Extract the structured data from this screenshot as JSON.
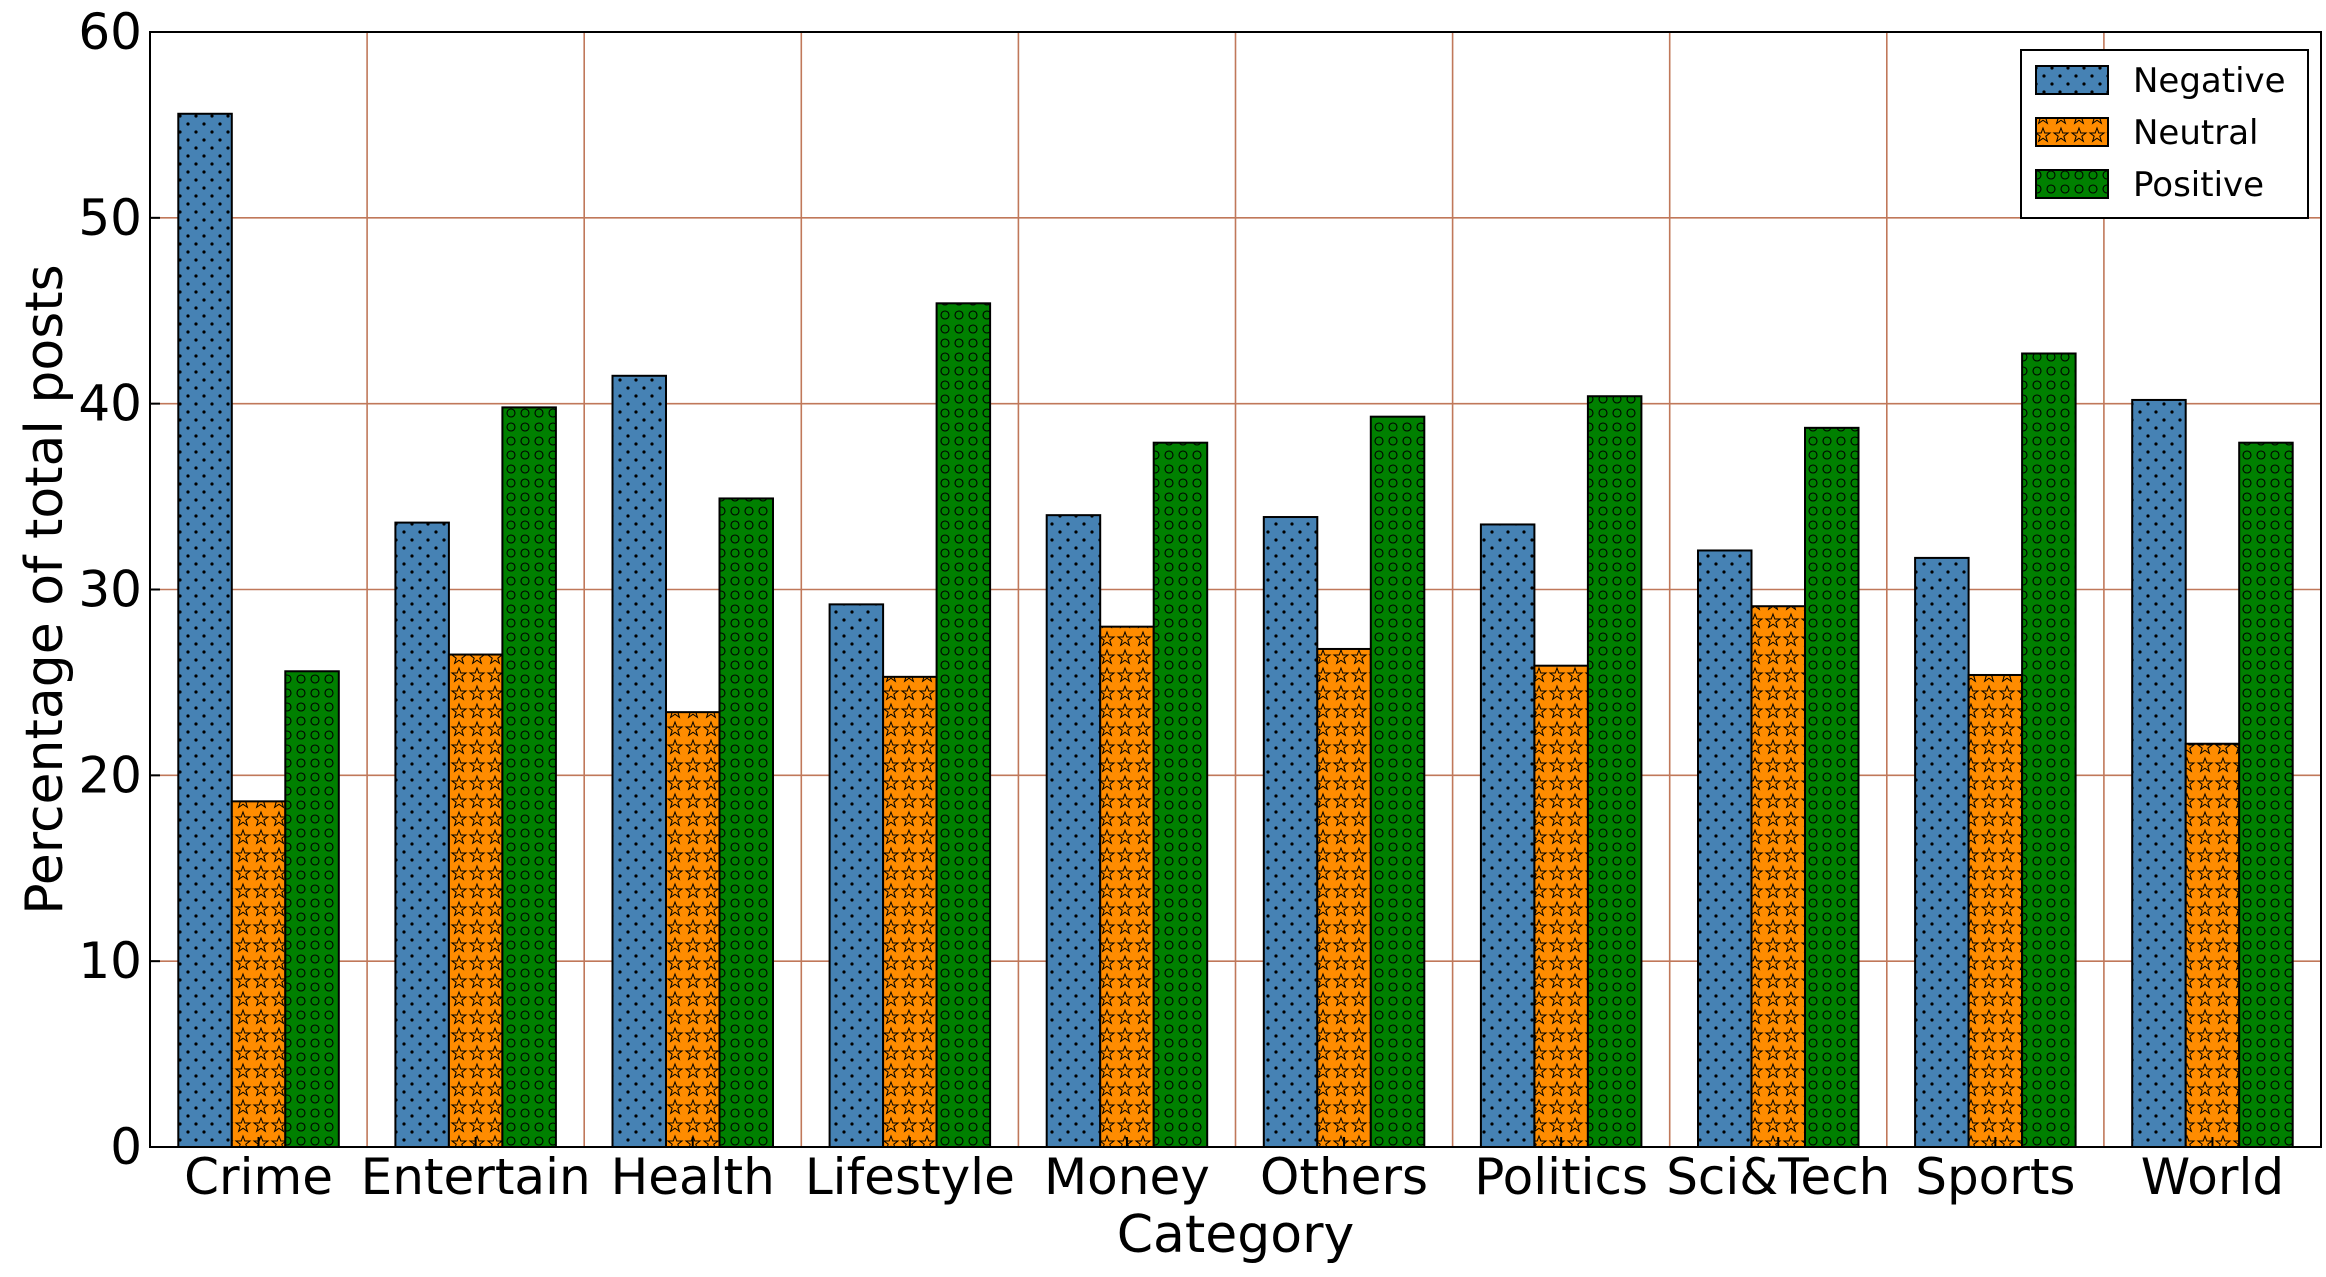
{
  "chart_data": {
    "type": "bar",
    "title": "",
    "xlabel": "Category",
    "ylabel": "Percentage of total posts",
    "ylim": [
      0,
      60
    ],
    "yticks": [
      0,
      10,
      20,
      30,
      40,
      50,
      60
    ],
    "grid": true,
    "legend_position": "top-right",
    "categories": [
      "Crime",
      "Entertain",
      "Health",
      "Lifestyle",
      "Money",
      "Others",
      "Politics",
      "Sci&Tech",
      "Sports",
      "World"
    ],
    "series": [
      {
        "name": "Negative",
        "color": "#4682b4",
        "pattern": "dots",
        "values": [
          55.6,
          33.6,
          41.5,
          29.2,
          34.0,
          33.9,
          33.5,
          32.1,
          31.7,
          40.2
        ]
      },
      {
        "name": "Neutral",
        "color": "#ff8c00",
        "pattern": "stars",
        "values": [
          18.6,
          26.5,
          23.4,
          25.3,
          28.0,
          26.8,
          25.9,
          29.1,
          25.4,
          21.7
        ]
      },
      {
        "name": "Positive",
        "color": "#008000",
        "pattern": "circles",
        "values": [
          25.6,
          39.8,
          34.9,
          45.4,
          37.9,
          39.3,
          40.4,
          38.7,
          42.7,
          37.9
        ]
      }
    ]
  }
}
